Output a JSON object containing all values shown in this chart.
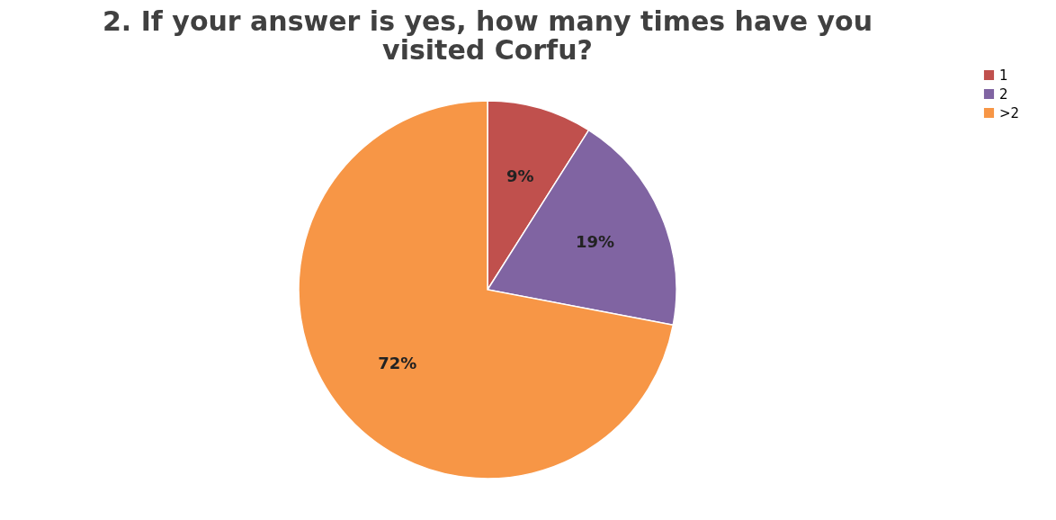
{
  "chart_data": {
    "type": "pie",
    "title": [
      "2. If your answer is yes, how many times have you",
      "visited Corfu?"
    ],
    "categories": [
      "1",
      "2",
      ">2"
    ],
    "values": [
      9,
      19,
      72
    ],
    "colors": [
      "#c0504d",
      "#8064a2",
      "#f79646"
    ],
    "value_labels": [
      "9%",
      "19%",
      "72%"
    ],
    "legend": "right"
  }
}
